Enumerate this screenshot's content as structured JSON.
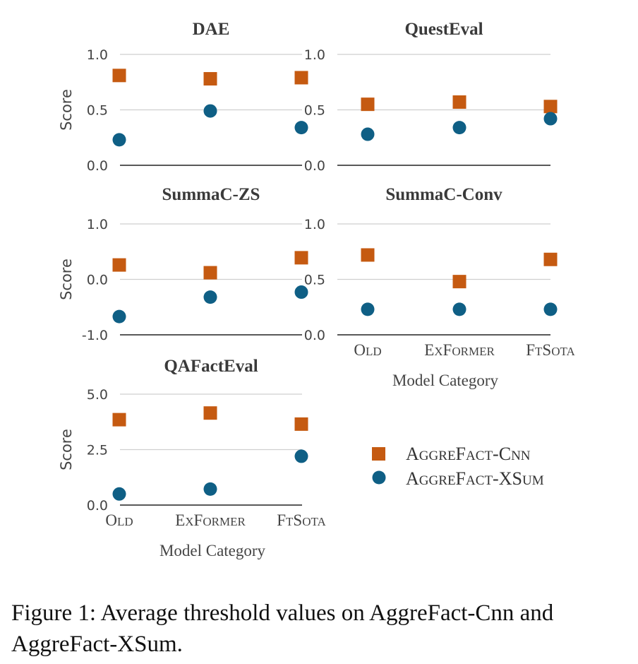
{
  "colors": {
    "cnn": "#c55a11",
    "xsum": "#0f5f85",
    "grid": "#cfcfcf",
    "axis": "#222222"
  },
  "legend": {
    "cnn_label": "AggreFact-Cnn",
    "xsum_label": "AggreFact-XSum",
    "placement": "lower-right"
  },
  "caption": "Figure 1: Average threshold values on AggreFact-Cnn and AggreFact-XSum.",
  "chart_data": [
    {
      "type": "scatter",
      "title": "DAE",
      "ylabel": "Score",
      "xlabel": "",
      "categories": [
        "Old",
        "ExFormer",
        "FtSota"
      ],
      "yticks": [
        "0.0",
        "0.5",
        "1.0"
      ],
      "ylim": [
        0,
        1
      ],
      "series": [
        {
          "name": "AggreFact-Cnn",
          "values": [
            0.81,
            0.78,
            0.79
          ]
        },
        {
          "name": "AggreFact-XSum",
          "values": [
            0.23,
            0.49,
            0.34
          ]
        }
      ]
    },
    {
      "type": "scatter",
      "title": "QuestEval",
      "ylabel": "",
      "xlabel": "",
      "categories": [
        "Old",
        "ExFormer",
        "FtSota"
      ],
      "yticks": [
        "0.0",
        "0.5",
        "1.0"
      ],
      "ylim": [
        0,
        1
      ],
      "series": [
        {
          "name": "AggreFact-Cnn",
          "values": [
            0.55,
            0.57,
            0.53
          ]
        },
        {
          "name": "AggreFact-XSum",
          "values": [
            0.28,
            0.34,
            0.42
          ]
        }
      ]
    },
    {
      "type": "scatter",
      "title": "SummaC-ZS",
      "ylabel": "Score",
      "xlabel": "",
      "categories": [
        "Old",
        "ExFormer",
        "FtSota"
      ],
      "yticks": [
        "-1.0",
        "0.0",
        "1.0"
      ],
      "ylim": [
        -1,
        1
      ],
      "series": [
        {
          "name": "AggreFact-Cnn",
          "values": [
            0.26,
            0.12,
            0.39
          ]
        },
        {
          "name": "AggreFact-XSum",
          "values": [
            -0.67,
            -0.32,
            -0.23
          ]
        }
      ]
    },
    {
      "type": "scatter",
      "title": "SummaC-Conv",
      "ylabel": "",
      "xlabel": "Model Category",
      "categories": [
        "Old",
        "ExFormer",
        "FtSota"
      ],
      "yticks": [
        "0.0",
        "0.5",
        "1.0"
      ],
      "ylim": [
        0,
        1
      ],
      "series": [
        {
          "name": "AggreFact-Cnn",
          "values": [
            0.72,
            0.48,
            0.68
          ]
        },
        {
          "name": "AggreFact-XSum",
          "values": [
            0.23,
            0.23,
            0.23
          ]
        }
      ]
    },
    {
      "type": "scatter",
      "title": "QAFactEval",
      "ylabel": "Score",
      "xlabel": "Model Category",
      "categories": [
        "Old",
        "ExFormer",
        "FtSota"
      ],
      "yticks": [
        "0.0",
        "2.5",
        "5.0"
      ],
      "ylim": [
        0,
        5
      ],
      "series": [
        {
          "name": "AggreFact-Cnn",
          "values": [
            3.85,
            4.15,
            3.65
          ]
        },
        {
          "name": "AggreFact-XSum",
          "values": [
            0.5,
            0.72,
            2.2
          ]
        }
      ]
    }
  ]
}
